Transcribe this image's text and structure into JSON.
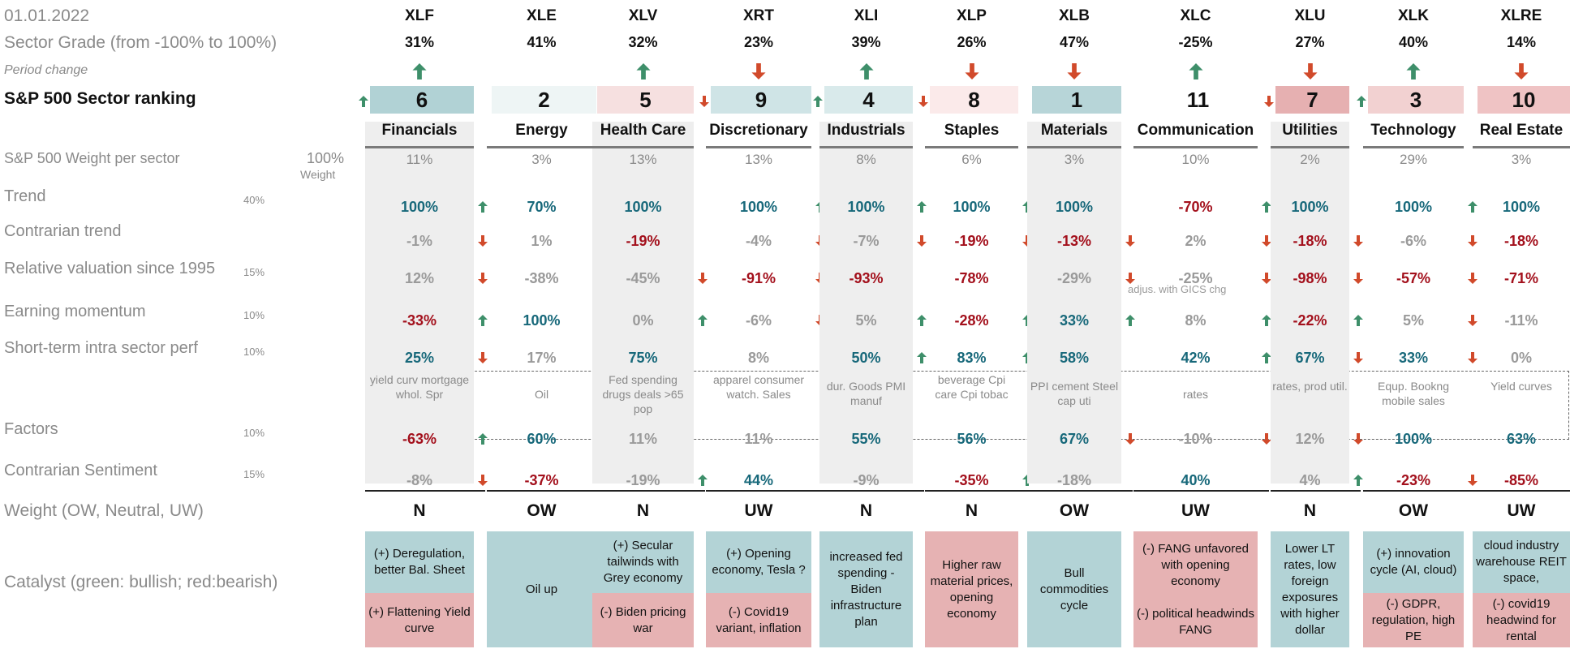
{
  "header": {
    "date": "01.01.2022",
    "sector_grade_label": "Sector Grade (from -100% to 100%)",
    "period_change_label": "Period change",
    "ranking_label": "S&P 500 Sector ranking"
  },
  "labels": {
    "weight_per_sector": "S&P 500 Weight per sector",
    "total_weight": "100%",
    "weight_caption": "Weight",
    "trend": "Trend",
    "trend_w": "40%",
    "contrarian_trend": "Contrarian trend",
    "relative_valuation": "Relative valuation since 1995",
    "relative_valuation_w": "15%",
    "earning_momentum": "Earning momentum",
    "earning_momentum_w": "10%",
    "short_term": "Short-term intra sector perf",
    "short_term_w": "10%",
    "factors": "Factors",
    "factors_w": "10%",
    "contrarian_sentiment": "Contrarian Sentiment",
    "contrarian_sentiment_w": "15%",
    "weight_row": "Weight (OW, Neutral, UW)",
    "catalyst": "Catalyst (green: bullish; red:bearish)",
    "adjus_note": "adjus. with GICS chg"
  },
  "colors": {
    "positive": "#17687a",
    "negative": "#a3101c",
    "neutral": "#9a9a9a",
    "up_arrow": "#3e8f6a",
    "down_arrow": "#d14a2b",
    "green_box": "#b3d3d6",
    "red_box": "#e6b2b3"
  },
  "sectors": [
    {
      "ticker": "XLF",
      "grade": "31%",
      "change": "up",
      "rank": "6",
      "rank_arrow": "up",
      "name": "Financials",
      "weight": "11%",
      "trend": "100%",
      "trend_s": "pos",
      "trend_a": "up",
      "contr": "-1%",
      "contr_s": "neu",
      "contr_a": "down",
      "val": "12%",
      "val_s": "neu",
      "val_a": "down",
      "earn": "-33%",
      "earn_s": "neg",
      "earn_a": "up",
      "short": "25%",
      "short_s": "pos",
      "short_a": "down",
      "note": "yield curv mortgage whol. Spr",
      "fact": "-63%",
      "fact_s": "neg",
      "fact_a": "up",
      "sent": "-8%",
      "sent_s": "neu",
      "sent_a": "down",
      "wgt": "N",
      "cat_pos": "(+) Deregulation, better Bal. Sheet",
      "cat_neg": "(+) Flattening Yield curve"
    },
    {
      "ticker": "XLE",
      "grade": "41%",
      "change": "",
      "rank": "2",
      "rank_arrow": "",
      "name": "Energy",
      "weight": "3%",
      "trend": "70%",
      "trend_s": "pos",
      "trend_a": "",
      "contr": "1%",
      "contr_s": "neu",
      "contr_a": "down",
      "val": "-38%",
      "val_s": "neu",
      "val_a": "",
      "earn": "100%",
      "earn_s": "pos",
      "earn_a": "up",
      "short": "17%",
      "short_s": "neu",
      "short_a": "down",
      "note": "Oil",
      "fact": "60%",
      "fact_s": "pos",
      "fact_a": "up",
      "sent": "-37%",
      "sent_s": "neg",
      "sent_a": "",
      "wgt": "OW",
      "cat_pos": "Oil up",
      "cat_neg": ""
    },
    {
      "ticker": "XLV",
      "grade": "32%",
      "change": "up",
      "rank": "5",
      "rank_arrow": "",
      "name": "Health Care",
      "weight": "13%",
      "trend": "100%",
      "trend_s": "pos",
      "trend_a": "",
      "contr": "-19%",
      "contr_s": "neg",
      "contr_a": "",
      "val": "-45%",
      "val_s": "neu",
      "val_a": "down",
      "earn": "0%",
      "earn_s": "neu",
      "earn_a": "up",
      "short": "75%",
      "short_s": "pos",
      "short_a": "",
      "note": "Fed spending drugs deals >65 pop",
      "fact": "11%",
      "fact_s": "neu",
      "fact_a": "",
      "sent": "-19%",
      "sent_s": "neu",
      "sent_a": "up",
      "wgt": "N",
      "cat_pos": "(+) Secular tailwinds with Grey economy",
      "cat_neg": "(-) Biden pricing war"
    },
    {
      "ticker": "XRT",
      "grade": "23%",
      "change": "down",
      "rank": "9",
      "rank_arrow": "down",
      "name": "Discretionary",
      "weight": "13%",
      "trend": "100%",
      "trend_s": "pos",
      "trend_a": "up",
      "contr": "-4%",
      "contr_s": "neu",
      "contr_a": "down",
      "val": "-91%",
      "val_s": "neg",
      "val_a": "down",
      "earn": "-6%",
      "earn_s": "neu",
      "earn_a": "down",
      "short": "8%",
      "short_s": "neu",
      "short_a": "",
      "note": "apparel consumer watch. Sales",
      "fact": "11%",
      "fact_s": "neu",
      "fact_a": "",
      "sent": "44%",
      "sent_s": "pos",
      "sent_a": "",
      "wgt": "UW",
      "cat_pos": "(+) Opening economy, Tesla ?",
      "cat_neg": "(-) Covid19 variant, inflation"
    },
    {
      "ticker": "XLI",
      "grade": "39%",
      "change": "up",
      "rank": "4",
      "rank_arrow": "up",
      "name": "Industrials",
      "weight": "8%",
      "trend": "100%",
      "trend_s": "pos",
      "trend_a": "up",
      "contr": "-7%",
      "contr_s": "neu",
      "contr_a": "down",
      "val": "-93%",
      "val_s": "neg",
      "val_a": "",
      "earn": "5%",
      "earn_s": "neu",
      "earn_a": "up",
      "short": "50%",
      "short_s": "pos",
      "short_a": "up",
      "note": "dur. Goods PMI manuf",
      "fact": "55%",
      "fact_s": "pos",
      "fact_a": "",
      "sent": "-9%",
      "sent_s": "neu",
      "sent_a": "",
      "wgt": "N",
      "cat_pos": "increased fed spending - Biden infrastructure plan",
      "cat_neg": ""
    },
    {
      "ticker": "XLP",
      "grade": "26%",
      "change": "down",
      "rank": "8",
      "rank_arrow": "down",
      "name": "Staples",
      "weight": "6%",
      "trend": "100%",
      "trend_s": "pos",
      "trend_a": "up",
      "contr": "-19%",
      "contr_s": "neg",
      "contr_a": "down",
      "val": "-78%",
      "val_s": "neg",
      "val_a": "",
      "earn": "-28%",
      "earn_s": "neg",
      "earn_a": "up",
      "short": "83%",
      "short_s": "pos",
      "short_a": "up",
      "note": "beverage  Cpi care Cpi tobac",
      "fact": "56%",
      "fact_s": "pos",
      "fact_a": "",
      "sent": "-35%",
      "sent_s": "neg",
      "sent_a": "up",
      "wgt": "N",
      "cat_pos": "",
      "cat_neg": "Higher raw material prices, opening economy"
    },
    {
      "ticker": "XLB",
      "grade": "47%",
      "change": "down",
      "rank": "1",
      "rank_arrow": "",
      "name": "Materials",
      "weight": "3%",
      "trend": "100%",
      "trend_s": "pos",
      "trend_a": "",
      "contr": "-13%",
      "contr_s": "neg",
      "contr_a": "down",
      "val": "-29%",
      "val_s": "neu",
      "val_a": "down",
      "earn": "33%",
      "earn_s": "pos",
      "earn_a": "up",
      "short": "58%",
      "short_s": "pos",
      "short_a": "",
      "note": "PPI cement Steel cap uti",
      "fact": "67%",
      "fact_s": "pos",
      "fact_a": "down",
      "sent": "-18%",
      "sent_s": "neu",
      "sent_a": "",
      "wgt": "OW",
      "cat_pos": "Bull commodities cycle",
      "cat_neg": ""
    },
    {
      "ticker": "XLC",
      "grade": "-25%",
      "change": "up",
      "rank": "11",
      "rank_arrow": "",
      "name": "Communication",
      "weight": "10%",
      "trend": "-70%",
      "trend_s": "neg",
      "trend_a": "up",
      "contr": "2%",
      "contr_s": "neu",
      "contr_a": "down",
      "val": "-25%",
      "val_s": "neu",
      "val_a": "down",
      "earn": "8%",
      "earn_s": "neu",
      "earn_a": "up",
      "short": "42%",
      "short_s": "pos",
      "short_a": "up",
      "note": "rates",
      "fact": "-10%",
      "fact_s": "neu",
      "fact_a": "down",
      "sent": "40%",
      "sent_s": "pos",
      "sent_a": "",
      "wgt": "UW",
      "cat_pos": "",
      "cat_neg": "(-) FANG unfavored with opening economy\n\n(-) political headwinds FANG"
    },
    {
      "ticker": "XLU",
      "grade": "27%",
      "change": "down",
      "rank": "7",
      "rank_arrow": "down",
      "name": "Utilities",
      "weight": "2%",
      "trend": "100%",
      "trend_s": "pos",
      "trend_a": "",
      "contr": "-18%",
      "contr_s": "neg",
      "contr_a": "down",
      "val": "-98%",
      "val_s": "neg",
      "val_a": "down",
      "earn": "-22%",
      "earn_s": "neg",
      "earn_a": "up",
      "short": "67%",
      "short_s": "pos",
      "short_a": "down",
      "note": "rates,  prod util.",
      "fact": "12%",
      "fact_s": "neu",
      "fact_a": "down",
      "sent": "4%",
      "sent_s": "neu",
      "sent_a": "up",
      "wgt": "N",
      "cat_pos": "Lower LT rates, low foreign exposures with higher dollar",
      "cat_neg": ""
    },
    {
      "ticker": "XLK",
      "grade": "40%",
      "change": "up",
      "rank": "3",
      "rank_arrow": "up",
      "name": "Technology",
      "weight": "29%",
      "trend": "100%",
      "trend_s": "pos",
      "trend_a": "up",
      "contr": "-6%",
      "contr_s": "neu",
      "contr_a": "down",
      "val": "-57%",
      "val_s": "neg",
      "val_a": "down",
      "earn": "5%",
      "earn_s": "neu",
      "earn_a": "down",
      "short": "33%",
      "short_s": "pos",
      "short_a": "down",
      "note": "Equp. Bookng mobile sales",
      "fact": "100%",
      "fact_s": "pos",
      "fact_a": "",
      "sent": "-23%",
      "sent_s": "neg",
      "sent_a": "down",
      "wgt": "OW",
      "cat_pos": "(+)  innovation cycle (AI, cloud)",
      "cat_neg": "(-) GDPR, regulation, high PE"
    },
    {
      "ticker": "XLRE",
      "grade": "14%",
      "change": "down",
      "rank": "10",
      "rank_arrow": "",
      "name": "Real Estate",
      "weight": "3%",
      "trend": "100%",
      "trend_s": "pos",
      "trend_a": "",
      "contr": "-18%",
      "contr_s": "neg",
      "contr_a": "",
      "val": "-71%",
      "val_s": "neg",
      "val_a": "",
      "earn": "-11%",
      "earn_s": "neu",
      "earn_a": "",
      "short": "0%",
      "short_s": "neu",
      "short_a": "",
      "note": "Yield curves",
      "fact": "63%",
      "fact_s": "pos",
      "fact_a": "",
      "sent": "-85%",
      "sent_s": "neg",
      "sent_a": "",
      "wgt": "UW",
      "cat_pos": "cloud industry warehouse REIT space,",
      "cat_neg": "(-) covid19 headwind for rental"
    }
  ]
}
